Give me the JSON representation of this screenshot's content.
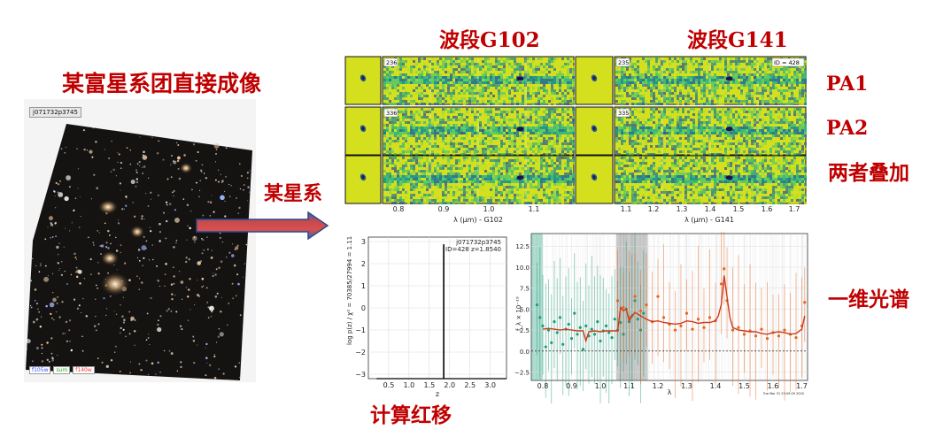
{
  "labels": {
    "cluster_image": "某富星系团直接成像",
    "galaxy": "某星系",
    "band_g102": "波段G102",
    "band_g141": "波段G141",
    "pa1": "PA1",
    "pa2": "PA2",
    "stacked": "两者叠加",
    "spectrum_1d": "一维光谱",
    "redshift": "计算红移"
  },
  "cluster_panel": {
    "field_id": "j071732p3745",
    "legend": [
      "f105w",
      "sum",
      "f140w"
    ],
    "legend_colors": [
      "#3355ff",
      "#22aa22",
      "#ff3333"
    ]
  },
  "spectra_2d": {
    "g102_ids": [
      "236",
      "336",
      ""
    ],
    "g141_ids": [
      "235",
      "335",
      ""
    ],
    "object_label": "ID = 428",
    "g102_ticks": [
      "0.8",
      "0.9",
      "1.0",
      "1.1"
    ],
    "g102_xlabel": "λ (μm) - G102",
    "g141_ticks": [
      "1.1",
      "1.2",
      "1.3",
      "1.4",
      "1.5",
      "1.6",
      "1.7"
    ],
    "g141_xlabel": "λ (μm) - G141"
  },
  "pz_panel": {
    "field_id": "j071732p3745",
    "info": "ID=428   z=1.8540",
    "ylabel": "log p(z) / χ² = 70385/27994 = 1.11",
    "xlabel": "z",
    "x_ticks": [
      "0.5",
      "1.0",
      "1.5",
      "2.0",
      "2.5",
      "3.0"
    ],
    "y_ticks": [
      "3",
      "2",
      "1",
      "0",
      "−1",
      "−2",
      "−3"
    ]
  },
  "spec_panel": {
    "ylabel": "f_λ × 10⁻¹⁹",
    "xlabel": "λ",
    "y_ticks": [
      "12.5",
      "10.0",
      "7.5",
      "5.0",
      "2.5",
      "0.0",
      "−2.5"
    ],
    "x_ticks": [
      "0.8",
      "0.9",
      "1.0",
      "1.1",
      "1.2",
      "1.3",
      "1.4",
      "1.5",
      "1.6",
      "1.7"
    ],
    "timestamp": "Tue Mar 31 23:09:09 2020"
  },
  "chart_data": [
    {
      "type": "line",
      "xlabel": "z",
      "x": [
        0.2,
        1.85,
        1.85,
        1.86,
        1.86,
        3.4
      ],
      "y": [
        -3.2,
        -3.2,
        2.85,
        2.85,
        -3.2,
        -3.2
      ],
      "xlim": [
        0.0,
        3.4
      ],
      "ylim": [
        -3.2,
        3.2
      ]
    },
    {
      "type": "line",
      "xlabel": "λ",
      "xlim": [
        0.76,
        1.72
      ],
      "ylim": [
        -3.5,
        14
      ],
      "series": [
        {
          "color": "#1a9e77",
          "x": [
            0.78,
            0.79,
            0.8,
            0.81,
            0.82,
            0.83,
            0.84,
            0.85,
            0.86,
            0.87,
            0.88,
            0.89,
            0.9,
            0.91,
            0.92,
            0.93,
            0.94,
            0.95,
            0.96,
            0.97,
            0.98,
            0.99,
            1.0,
            1.01,
            1.02,
            1.03,
            1.04,
            1.05,
            1.06,
            1.07,
            1.08,
            1.09,
            1.1,
            1.11,
            1.12,
            1.13,
            1.14,
            1.15
          ],
          "y": [
            5.5,
            4.0,
            3.0,
            0.5,
            2.5,
            1.0,
            3.5,
            2.2,
            4.0,
            0.8,
            2.6,
            3.2,
            1.5,
            4.5,
            2.0,
            2.8,
            0.2,
            3.0,
            1.8,
            2.6,
            2.0,
            3.5,
            1.2,
            2.4,
            3.0,
            2.2,
            1.6,
            3.8,
            2.5,
            3.4,
            2.0,
            5.0,
            3.5,
            4.2,
            6.0,
            3.8,
            2.5,
            4.5
          ]
        },
        {
          "color": "#e8641b",
          "x": [
            1.06,
            1.08,
            1.1,
            1.12,
            1.14,
            1.16,
            1.18,
            1.2,
            1.22,
            1.24,
            1.26,
            1.28,
            1.3,
            1.32,
            1.34,
            1.36,
            1.38,
            1.4,
            1.42,
            1.43,
            1.44,
            1.46,
            1.48,
            1.5,
            1.52,
            1.54,
            1.56,
            1.58,
            1.6,
            1.62,
            1.64,
            1.66,
            1.68,
            1.7,
            1.71
          ],
          "y": [
            6.0,
            5.2,
            4.0,
            6.5,
            4.8,
            5.5,
            3.5,
            6.5,
            4.0,
            3.2,
            2.5,
            3.0,
            4.5,
            2.6,
            3.8,
            2.8,
            4.0,
            3.6,
            8.0,
            9.8,
            6.0,
            2.5,
            2.8,
            2.0,
            2.4,
            1.8,
            2.6,
            1.5,
            2.2,
            1.8,
            2.5,
            2.0,
            1.6,
            3.0,
            5.8
          ]
        },
        {
          "color": "#d03a1e",
          "x": [
            0.8,
            0.82,
            0.84,
            0.86,
            0.88,
            0.9,
            0.92,
            0.94,
            0.95,
            0.96,
            0.98,
            1.0,
            1.02,
            1.04,
            1.06,
            1.07,
            1.08,
            1.09,
            1.1,
            1.11,
            1.12,
            1.14,
            1.16,
            1.18,
            1.2,
            1.22,
            1.24,
            1.26,
            1.28,
            1.3,
            1.32,
            1.34,
            1.36,
            1.38,
            1.4,
            1.41,
            1.42,
            1.43,
            1.44,
            1.45,
            1.46,
            1.48,
            1.5,
            1.52,
            1.54,
            1.56,
            1.58,
            1.6,
            1.62,
            1.64,
            1.66,
            1.68,
            1.7,
            1.71
          ],
          "y": [
            2.6,
            2.7,
            2.6,
            2.5,
            2.6,
            2.5,
            2.4,
            2.4,
            1.2,
            2.3,
            2.4,
            2.3,
            2.4,
            2.4,
            2.4,
            5.2,
            4.8,
            5.0,
            3.6,
            4.2,
            4.6,
            4.2,
            3.8,
            3.5,
            3.6,
            3.4,
            3.3,
            3.2,
            3.3,
            3.6,
            3.5,
            3.3,
            3.4,
            3.4,
            3.6,
            4.2,
            5.5,
            9.0,
            6.5,
            4.0,
            2.8,
            2.5,
            2.4,
            2.3,
            2.3,
            2.1,
            2.0,
            2.2,
            2.3,
            2.2,
            2.0,
            2.1,
            2.6,
            4.2
          ]
        }
      ]
    }
  ]
}
